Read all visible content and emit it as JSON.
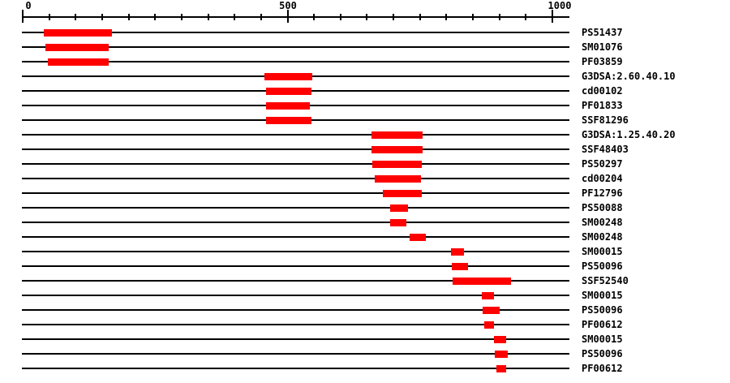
{
  "chart_data": {
    "type": "bar",
    "subtype": "protein-domain-track",
    "title": "",
    "xlabel": "",
    "ylabel": "",
    "axis": {
      "min": 0,
      "max": 1000,
      "minor_tick_interval": 50,
      "major_ticks": [
        0,
        500,
        1000
      ],
      "major_tick_labels": [
        "0",
        "500",
        "1000"
      ],
      "grid": false
    },
    "colors": {
      "bar": "#ff0000",
      "line": "#000000",
      "text": "#000000",
      "background": "#ffffff"
    },
    "rows": [
      {
        "label": "PS51437",
        "start": 40,
        "end": 168
      },
      {
        "label": "SM01076",
        "start": 43,
        "end": 163
      },
      {
        "label": "PF03859",
        "start": 47,
        "end": 162
      },
      {
        "label": "G3DSA:2.60.40.10",
        "start": 457,
        "end": 548
      },
      {
        "label": "cd00102",
        "start": 460,
        "end": 545
      },
      {
        "label": "PF01833",
        "start": 460,
        "end": 542
      },
      {
        "label": "SSF81296",
        "start": 460,
        "end": 545
      },
      {
        "label": "G3DSA:1.25.40.20",
        "start": 658,
        "end": 754
      },
      {
        "label": "SSF48403",
        "start": 659,
        "end": 756
      },
      {
        "label": "PS50297",
        "start": 660,
        "end": 753
      },
      {
        "label": "cd00204",
        "start": 665,
        "end": 752
      },
      {
        "label": "PF12796",
        "start": 680,
        "end": 753
      },
      {
        "label": "PS50088",
        "start": 693,
        "end": 726
      },
      {
        "label": "SM00248",
        "start": 693,
        "end": 723
      },
      {
        "label": "SM00248",
        "start": 731,
        "end": 762
      },
      {
        "label": "SM00015",
        "start": 809,
        "end": 833
      },
      {
        "label": "PS50096",
        "start": 810,
        "end": 840
      },
      {
        "label": "SSF52540",
        "start": 811,
        "end": 922
      },
      {
        "label": "SM00015",
        "start": 867,
        "end": 890
      },
      {
        "label": "PS50096",
        "start": 868,
        "end": 900
      },
      {
        "label": "PF00612",
        "start": 872,
        "end": 890
      },
      {
        "label": "SM00015",
        "start": 889,
        "end": 912
      },
      {
        "label": "PS50096",
        "start": 891,
        "end": 916
      },
      {
        "label": "PF00612",
        "start": 894,
        "end": 913
      }
    ]
  }
}
